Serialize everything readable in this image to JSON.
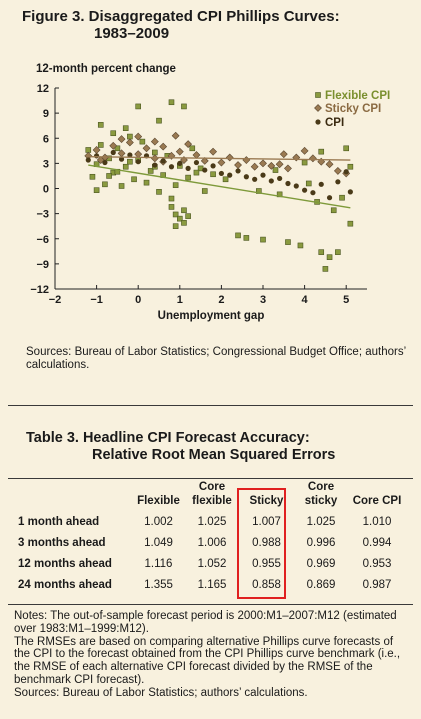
{
  "figure": {
    "title_line1": "Figure 3. Disaggregated CPI Phillips Curves:",
    "title_line2": "1983–2009",
    "sources": "Sources: Bureau of Labor Statistics; Congressional Budget Office; authors’ calculations."
  },
  "chart_data": {
    "type": "scatter",
    "ylabel": "12-month percent change",
    "xlabel": "Unemployment gap",
    "xlim": [
      -2,
      5.5
    ],
    "ylim": [
      -12,
      12
    ],
    "x_ticks": [
      "−2",
      "−1",
      "0",
      "1",
      "2",
      "3",
      "4",
      "5"
    ],
    "y_ticks": [
      "12",
      "9",
      "6",
      "3",
      "0",
      "−3",
      "−6",
      "−9",
      "−12"
    ],
    "grid": false,
    "legend_position": "top-right",
    "series": [
      {
        "name": "Flexible CPI",
        "marker": "square",
        "color": "#8a9a3f",
        "points": [
          [
            -1.2,
            4.6
          ],
          [
            -1.1,
            1.4
          ],
          [
            -1.0,
            2.9
          ],
          [
            -0.9,
            5.2
          ],
          [
            -0.8,
            0.5
          ],
          [
            -0.7,
            3.6
          ],
          [
            -0.6,
            1.9
          ],
          [
            -0.5,
            4.8
          ],
          [
            -0.4,
            0.3
          ],
          [
            -0.3,
            2.6
          ],
          [
            -0.2,
            6.2
          ],
          [
            -0.1,
            1.1
          ],
          [
            0.0,
            3.4
          ],
          [
            0.1,
            5.6
          ],
          [
            0.2,
            0.7
          ],
          [
            0.3,
            2.1
          ],
          [
            0.4,
            4.3
          ],
          [
            0.5,
            -0.4
          ],
          [
            0.6,
            1.6
          ],
          [
            0.7,
            3.9
          ],
          [
            0.8,
            -1.2
          ],
          [
            0.9,
            0.4
          ],
          [
            1.0,
            2.7
          ],
          [
            1.1,
            -2.6
          ],
          [
            1.2,
            1.3
          ],
          [
            1.3,
            4.8
          ],
          [
            0.9,
            -3.1
          ],
          [
            1.0,
            -3.6
          ],
          [
            1.1,
            -4.1
          ],
          [
            0.8,
            -2.2
          ],
          [
            1.2,
            -3.3
          ],
          [
            0.9,
            -4.5
          ],
          [
            -0.9,
            7.6
          ],
          [
            -1.0,
            -0.2
          ],
          [
            -0.6,
            6.6
          ],
          [
            0.0,
            9.8
          ],
          [
            0.8,
            10.3
          ],
          [
            1.1,
            9.8
          ],
          [
            0.5,
            8.1
          ],
          [
            -0.3,
            7.2
          ],
          [
            1.5,
            2.4
          ],
          [
            1.8,
            1.7
          ],
          [
            2.1,
            1.1
          ],
          [
            1.6,
            -0.3
          ],
          [
            2.4,
            -5.6
          ],
          [
            2.6,
            -5.9
          ],
          [
            3.0,
            -6.1
          ],
          [
            3.6,
            -6.4
          ],
          [
            3.9,
            -6.8
          ],
          [
            4.4,
            -7.6
          ],
          [
            4.6,
            -8.2
          ],
          [
            4.8,
            -7.6
          ],
          [
            4.5,
            -9.6
          ],
          [
            5.1,
            -4.2
          ],
          [
            4.9,
            -1.1
          ],
          [
            4.3,
            -1.6
          ],
          [
            4.7,
            -2.6
          ],
          [
            4.1,
            0.6
          ],
          [
            3.4,
            -0.7
          ],
          [
            2.9,
            -0.3
          ],
          [
            4.0,
            3.1
          ],
          [
            4.4,
            4.4
          ],
          [
            5.0,
            4.8
          ],
          [
            5.1,
            2.6
          ],
          [
            3.3,
            2.2
          ],
          [
            -0.5,
            2.0
          ],
          [
            -0.7,
            1.5
          ],
          [
            0.4,
            2.6
          ],
          [
            1.4,
            1.9
          ],
          [
            -0.2,
            3.2
          ]
        ]
      },
      {
        "name": "Sticky CPI",
        "marker": "diamond",
        "color": "#9a7a52",
        "points": [
          [
            -1.2,
            3.9
          ],
          [
            -1.0,
            4.6
          ],
          [
            -0.8,
            3.7
          ],
          [
            -0.6,
            5.1
          ],
          [
            -0.4,
            4.2
          ],
          [
            -0.2,
            5.5
          ],
          [
            0.0,
            4.1
          ],
          [
            0.2,
            4.8
          ],
          [
            0.4,
            3.6
          ],
          [
            0.6,
            5.0
          ],
          [
            0.8,
            3.9
          ],
          [
            1.0,
            4.4
          ],
          [
            1.2,
            5.3
          ],
          [
            1.4,
            4.0
          ],
          [
            1.6,
            3.3
          ],
          [
            1.8,
            4.4
          ],
          [
            2.0,
            3.1
          ],
          [
            2.2,
            3.7
          ],
          [
            2.4,
            2.8
          ],
          [
            2.6,
            3.4
          ],
          [
            2.8,
            2.6
          ],
          [
            3.0,
            3.0
          ],
          [
            3.2,
            2.7
          ],
          [
            3.4,
            2.9
          ],
          [
            3.6,
            2.4
          ],
          [
            3.8,
            3.7
          ],
          [
            4.0,
            4.5
          ],
          [
            4.2,
            3.6
          ],
          [
            4.4,
            3.2
          ],
          [
            4.6,
            2.9
          ],
          [
            4.8,
            2.1
          ],
          [
            5.0,
            1.8
          ],
          [
            -0.4,
            5.9
          ],
          [
            0.0,
            6.2
          ],
          [
            0.4,
            5.6
          ],
          [
            0.9,
            6.3
          ],
          [
            -0.9,
            3.4
          ],
          [
            0.6,
            3.2
          ],
          [
            1.1,
            3.4
          ],
          [
            3.5,
            4.1
          ]
        ]
      },
      {
        "name": "CPI",
        "marker": "circle",
        "color": "#4a3a18",
        "points": [
          [
            -1.2,
            3.4
          ],
          [
            -1.0,
            3.9
          ],
          [
            -0.8,
            3.1
          ],
          [
            -0.6,
            4.3
          ],
          [
            -0.4,
            3.5
          ],
          [
            -0.2,
            4.0
          ],
          [
            0.0,
            3.2
          ],
          [
            0.2,
            3.9
          ],
          [
            0.4,
            2.8
          ],
          [
            0.6,
            3.3
          ],
          [
            0.8,
            2.6
          ],
          [
            1.0,
            3.0
          ],
          [
            1.2,
            2.4
          ],
          [
            1.4,
            3.1
          ],
          [
            1.6,
            2.2
          ],
          [
            1.8,
            2.7
          ],
          [
            2.0,
            1.8
          ],
          [
            2.2,
            1.6
          ],
          [
            2.4,
            2.1
          ],
          [
            2.6,
            1.4
          ],
          [
            2.8,
            1.1
          ],
          [
            3.0,
            1.6
          ],
          [
            3.2,
            0.9
          ],
          [
            3.4,
            1.2
          ],
          [
            3.6,
            0.6
          ],
          [
            3.8,
            0.3
          ],
          [
            4.0,
            -0.2
          ],
          [
            4.2,
            -0.5
          ],
          [
            4.4,
            0.5
          ],
          [
            4.6,
            -1.1
          ],
          [
            4.8,
            0.8
          ],
          [
            5.0,
            2.0
          ],
          [
            5.1,
            -0.4
          ]
        ]
      }
    ],
    "trendlines": [
      {
        "series": "Flexible CPI",
        "x": [
          -1.2,
          5.1
        ],
        "y": [
          2.8,
          -2.3
        ],
        "color": "#7e9a3a"
      },
      {
        "series": "Sticky CPI",
        "x": [
          -1.2,
          5.1
        ],
        "y": [
          3.8,
          3.4
        ],
        "color": "#9a7a52"
      }
    ]
  },
  "table": {
    "title_line1": "Table 3.   Headline CPI Forecast Accuracy:",
    "title_line2": "Relative Root Mean Squared Errors",
    "columns": [
      "",
      "Flexible",
      "Core flexible",
      "Sticky",
      "Core sticky",
      "Core CPI"
    ],
    "header": {
      "flexible": "Flexible",
      "core_flexible_1": "Core",
      "core_flexible_2": "flexible",
      "sticky": "Sticky",
      "core_sticky_1": "Core",
      "core_sticky_2": "sticky",
      "core_cpi": "Core CPI"
    },
    "rows": [
      {
        "label": "1 month ahead",
        "values": [
          "1.002",
          "1.025",
          "1.007",
          "1.025",
          "1.010"
        ]
      },
      {
        "label": "3 months ahead",
        "values": [
          "1.049",
          "1.006",
          "0.988",
          "0.996",
          "0.994"
        ]
      },
      {
        "label": "12 months ahead",
        "values": [
          "1.116",
          "1.052",
          "0.955",
          "0.969",
          "0.953"
        ]
      },
      {
        "label": "24 months ahead",
        "values": [
          "1.355",
          "1.165",
          "0.858",
          "0.869",
          "0.987"
        ]
      }
    ],
    "highlight_color": "#e02020",
    "notes_1": "Notes: The out-of-sample forecast period is 2000:M1–2007:M12 (estimated over 1983:M1–1999:M12).",
    "notes_2": "The RMSEs are based on comparing alternative Phillips curve forecasts of the CPI to the forecast obtained from the CPI Phillips curve benchmark (i.e., the RMSE of each alternative CPI forecast divided by the RMSE of the benchmark CPI forecast).",
    "notes_3": "Sources: Bureau of Labor Statistics; authors’ calculations."
  }
}
